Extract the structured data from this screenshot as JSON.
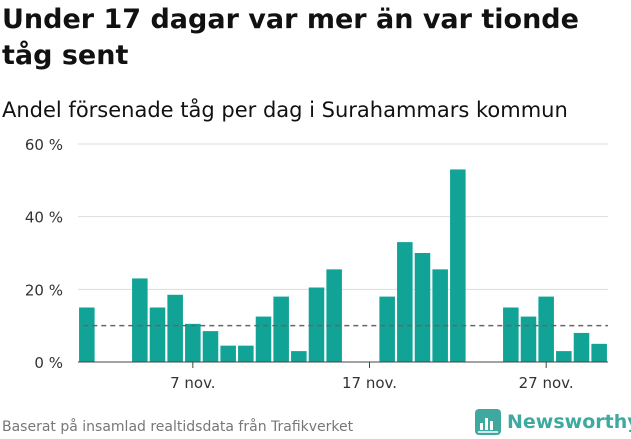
{
  "title": "Under 17 dagar var mer än var tionde tåg sent",
  "subtitle": "Andel försenade tåg per dag i Surahammars kommun",
  "source_note": "Baserat på insamlad realtidsdata från Trafikverket",
  "brand": {
    "name": "Newsworthy",
    "color": "#3fa9a0",
    "icon": "newsworthy-logo-icon"
  },
  "colors": {
    "bar": "#12a397",
    "reference_line": "#666666",
    "grid": "#dddddd",
    "axis_text": "#333333"
  },
  "chart_data": {
    "type": "bar",
    "y_unit": "%",
    "ylim": [
      0,
      60
    ],
    "yticks": [
      0,
      20,
      40,
      60
    ],
    "ytick_labels": [
      "0 %",
      "20 %",
      "40 %",
      "60 %"
    ],
    "xtick_labels": [
      {
        "day": 7,
        "label": "7 nov."
      },
      {
        "day": 17,
        "label": "17 nov."
      },
      {
        "day": 27,
        "label": "27 nov."
      }
    ],
    "reference_line": 10,
    "grid": true,
    "days": [
      1,
      2,
      3,
      4,
      5,
      6,
      7,
      8,
      9,
      10,
      11,
      12,
      13,
      14,
      15,
      16,
      17,
      18,
      19,
      20,
      21,
      22,
      23,
      24,
      25,
      26,
      27,
      28,
      29,
      30
    ],
    "values": [
      15,
      null,
      null,
      23,
      15,
      18.5,
      10.5,
      8.5,
      4.5,
      4.5,
      12.5,
      18,
      3,
      20.5,
      25.5,
      null,
      null,
      18,
      33,
      30,
      25.5,
      53,
      null,
      null,
      15,
      12.5,
      18,
      3,
      8,
      5
    ]
  }
}
